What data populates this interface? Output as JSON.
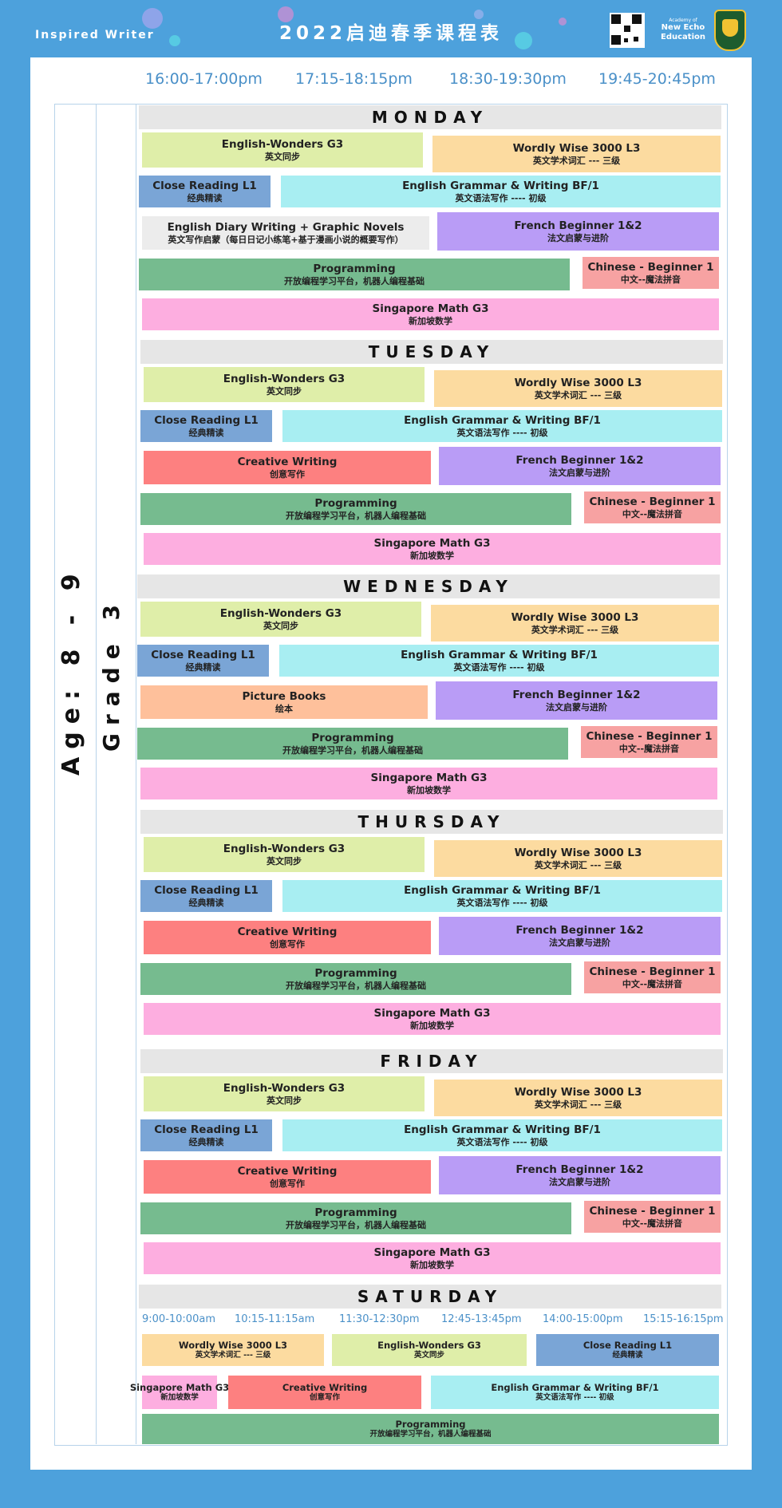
{
  "header": {
    "brand": "Inspired Writer",
    "title": "2022启迪春季课程表",
    "academy_small": "Academy of",
    "academy_line1": "New Echo",
    "academy_line2": "Education"
  },
  "time_slots": [
    "16:00-17:00pm",
    "17:15-18:15pm",
    "18:30-19:30pm",
    "19:45-20:45pm"
  ],
  "side_labels": {
    "age": "Age: 8 - 9",
    "grade": "Grade 3"
  },
  "days": [
    {
      "name": "MONDAY",
      "courses": [
        {
          "en": "English-Wonders  G3",
          "zh": "英文同步"
        },
        {
          "en": "Wordly  Wise  3000  L3",
          "zh": "英文学术词汇  ---  三级"
        },
        {
          "en": "Close  Reading  L1",
          "zh": "经典精读"
        },
        {
          "en": "English  Grammar  &  Writing  BF/1",
          "zh": "英文语法写作  ----  初级"
        },
        {
          "en": "English  Diary  Writing  +  Graphic  Novels",
          "zh": "英文写作启蒙（每日日记小练笔+基于漫画小说的概要写作）"
        },
        {
          "en": "French  Beginner  1&2",
          "zh": "法文启蒙与进阶"
        },
        {
          "en": "Programming",
          "zh": "开放编程学习平台，机器人编程基础"
        },
        {
          "en": "Chinese  -  Beginner  1",
          "zh": "中文--魔法拼音"
        },
        {
          "en": "Singapore  Math  G3",
          "zh": "新加坡数学"
        }
      ]
    },
    {
      "name": "TUESDAY",
      "courses": [
        {
          "en": "English-Wonders  G3",
          "zh": "英文同步"
        },
        {
          "en": "Wordly  Wise  3000  L3",
          "zh": "英文学术词汇  ---  三级"
        },
        {
          "en": "Close  Reading  L1",
          "zh": "经典精读"
        },
        {
          "en": "English  Grammar  &  Writing  BF/1",
          "zh": "英文语法写作  ----  初级"
        },
        {
          "en": "Creative  Writing",
          "zh": "创意写作"
        },
        {
          "en": "French  Beginner  1&2",
          "zh": "法文启蒙与进阶"
        },
        {
          "en": "Programming",
          "zh": "开放编程学习平台，机器人编程基础"
        },
        {
          "en": "Chinese  -  Beginner  1",
          "zh": "中文--魔法拼音"
        },
        {
          "en": "Singapore  Math  G3",
          "zh": "新加坡数学"
        }
      ]
    },
    {
      "name": "WEDNESDAY",
      "courses": [
        {
          "en": "English-Wonders  G3",
          "zh": "英文同步"
        },
        {
          "en": "Wordly  Wise  3000  L3",
          "zh": "英文学术词汇  ---  三级"
        },
        {
          "en": "Close  Reading  L1",
          "zh": "经典精读"
        },
        {
          "en": "English  Grammar  &  Writing  BF/1",
          "zh": "英文语法写作  ----  初级"
        },
        {
          "en": "Picture  Books",
          "zh": "绘本"
        },
        {
          "en": "French  Beginner  1&2",
          "zh": "法文启蒙与进阶"
        },
        {
          "en": "Programming",
          "zh": "开放编程学习平台，机器人编程基础"
        },
        {
          "en": "Chinese  -  Beginner  1",
          "zh": "中文--魔法拼音"
        },
        {
          "en": "Singapore  Math  G3",
          "zh": "新加坡数学"
        }
      ]
    },
    {
      "name": "THURSDAY",
      "courses": [
        {
          "en": "English-Wonders  G3",
          "zh": "英文同步"
        },
        {
          "en": "Wordly  Wise  3000  L3",
          "zh": "英文学术词汇  ---  三级"
        },
        {
          "en": "Close  Reading  L1",
          "zh": "经典精读"
        },
        {
          "en": "English  Grammar  &  Writing  BF/1",
          "zh": "英文语法写作  ----  初级"
        },
        {
          "en": "Creative  Writing",
          "zh": "创意写作"
        },
        {
          "en": "French  Beginner  1&2",
          "zh": "法文启蒙与进阶"
        },
        {
          "en": "Programming",
          "zh": "开放编程学习平台，机器人编程基础"
        },
        {
          "en": "Chinese  -  Beginner  1",
          "zh": "中文--魔法拼音"
        },
        {
          "en": "Singapore  Math  G3",
          "zh": "新加坡数学"
        }
      ]
    },
    {
      "name": "FRIDAY",
      "courses": [
        {
          "en": "English-Wonders  G3",
          "zh": "英文同步"
        },
        {
          "en": "Wordly  Wise  3000  L3",
          "zh": "英文学术词汇  ---  三级"
        },
        {
          "en": "Close  Reading  L1",
          "zh": "经典精读"
        },
        {
          "en": "English  Grammar  &  Writing  BF/1",
          "zh": "英文语法写作  ----  初级"
        },
        {
          "en": "Creative  Writing",
          "zh": "创意写作"
        },
        {
          "en": "French  Beginner  1&2",
          "zh": "法文启蒙与进阶"
        },
        {
          "en": "Programming",
          "zh": "开放编程学习平台，机器人编程基础"
        },
        {
          "en": "Chinese  -  Beginner  1",
          "zh": "中文--魔法拼音"
        },
        {
          "en": "Singapore  Math  G3",
          "zh": "新加坡数学"
        }
      ]
    }
  ],
  "saturday": {
    "name": "SATURDAY",
    "time_slots": [
      "9:00-10:00am",
      "10:15-11:15am",
      "11:30-12:30pm",
      "12:45-13:45pm",
      "14:00-15:00pm",
      "15:15-16:15pm"
    ],
    "courses": [
      {
        "en": "Wordly  Wise  3000  L3",
        "zh": "英文学术词汇  ---  三级"
      },
      {
        "en": "English-Wonders  G3",
        "zh": "英文同步"
      },
      {
        "en": "Close  Reading  L1",
        "zh": "经典精读"
      },
      {
        "en": "Singapore  Math  G3",
        "zh": "新加坡数学"
      },
      {
        "en": "Creative  Writing",
        "zh": "创意写作"
      },
      {
        "en": "English  Grammar  &  Writing  BF/1",
        "zh": "英文语法写作  ----  初级"
      },
      {
        "en": "Programming",
        "zh": "开放编程学习平台，机器人编程基础"
      }
    ]
  },
  "colors": {
    "background": "#4da1dc",
    "english_wonders": "#dfeea9",
    "wordly_wise": "#fcdba0",
    "close_reading": "#7aa5d6",
    "grammar": "#a8eef2",
    "french": "#b99cf6",
    "programming": "#76bb8f",
    "chinese": "#f7a2a2",
    "math": "#fdaee0",
    "creative_writing": "#fd8080",
    "picture_books": "#fec09b"
  }
}
